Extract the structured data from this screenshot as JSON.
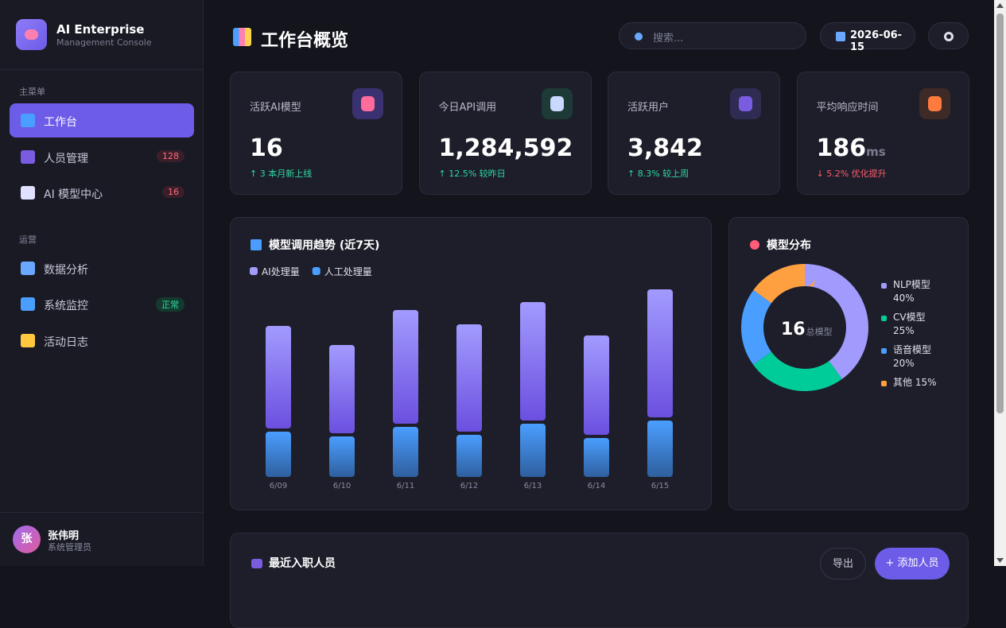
{
  "sidebar": {
    "brand": {
      "title": "AI Enterprise",
      "subtitle": "Management Console"
    },
    "sections": [
      {
        "title": "主菜单",
        "items": [
          {
            "label": "工作台",
            "active": true
          },
          {
            "label": "人员管理",
            "badge": "128"
          },
          {
            "label": "AI 模型中心",
            "badge": "16"
          }
        ]
      },
      {
        "title": "运营",
        "items": [
          {
            "label": "数据分析"
          },
          {
            "label": "系统监控",
            "badge": "正常"
          },
          {
            "label": "活动日志"
          }
        ]
      }
    ],
    "user": {
      "avatar": "张",
      "name": "张伟明",
      "role": "系统管理员"
    }
  },
  "header": {
    "title": "工作台概览",
    "search_placeholder": "搜索...",
    "date": "2026-06-15"
  },
  "stats": [
    {
      "label": "活跃AI模型",
      "value": "16",
      "change": "↑ 3 本月新上线",
      "trend": "up"
    },
    {
      "label": "今日API调用",
      "value": "1,284,592",
      "change": "↑ 12.5% 较昨日",
      "trend": "up"
    },
    {
      "label": "活跃用户",
      "value": "3,842",
      "change": "↑ 8.3% 较上周",
      "trend": "up"
    },
    {
      "label": "平均响应时间",
      "value": "186",
      "unit": "ms",
      "change": "↓ 5.2% 优化提升",
      "trend": "down"
    }
  ],
  "chart_data": [
    {
      "type": "bar",
      "stacked": true,
      "title": "模型调用趋势 (近7天)",
      "categories": [
        "6/09",
        "6/10",
        "6/11",
        "6/12",
        "6/13",
        "6/14",
        "6/15"
      ],
      "series": [
        {
          "name": "人工处理量",
          "color": "#4a9eff",
          "values": [
            57,
            51,
            63,
            53,
            67,
            49,
            71
          ]
        },
        {
          "name": "AI处理量",
          "color": "#a29bfe",
          "values": [
            129,
            111,
            143,
            135,
            149,
            125,
            161
          ]
        }
      ]
    },
    {
      "type": "pie",
      "donut": true,
      "title": "模型分布",
      "center_value": 16,
      "center_label": "总模型",
      "categories": [
        "NLP模型",
        "CV模型",
        "语音模型",
        "其他"
      ],
      "values": [
        40,
        25,
        20,
        15
      ],
      "value_labels": [
        "40%",
        "25%",
        "20%",
        "15%"
      ],
      "colors": [
        "#a29bfe",
        "#00cc99",
        "#4a9eff",
        "#ffa040"
      ]
    }
  ],
  "recent": {
    "title": "最近入职人员",
    "export": "导出",
    "add": "+ 添加人员"
  }
}
